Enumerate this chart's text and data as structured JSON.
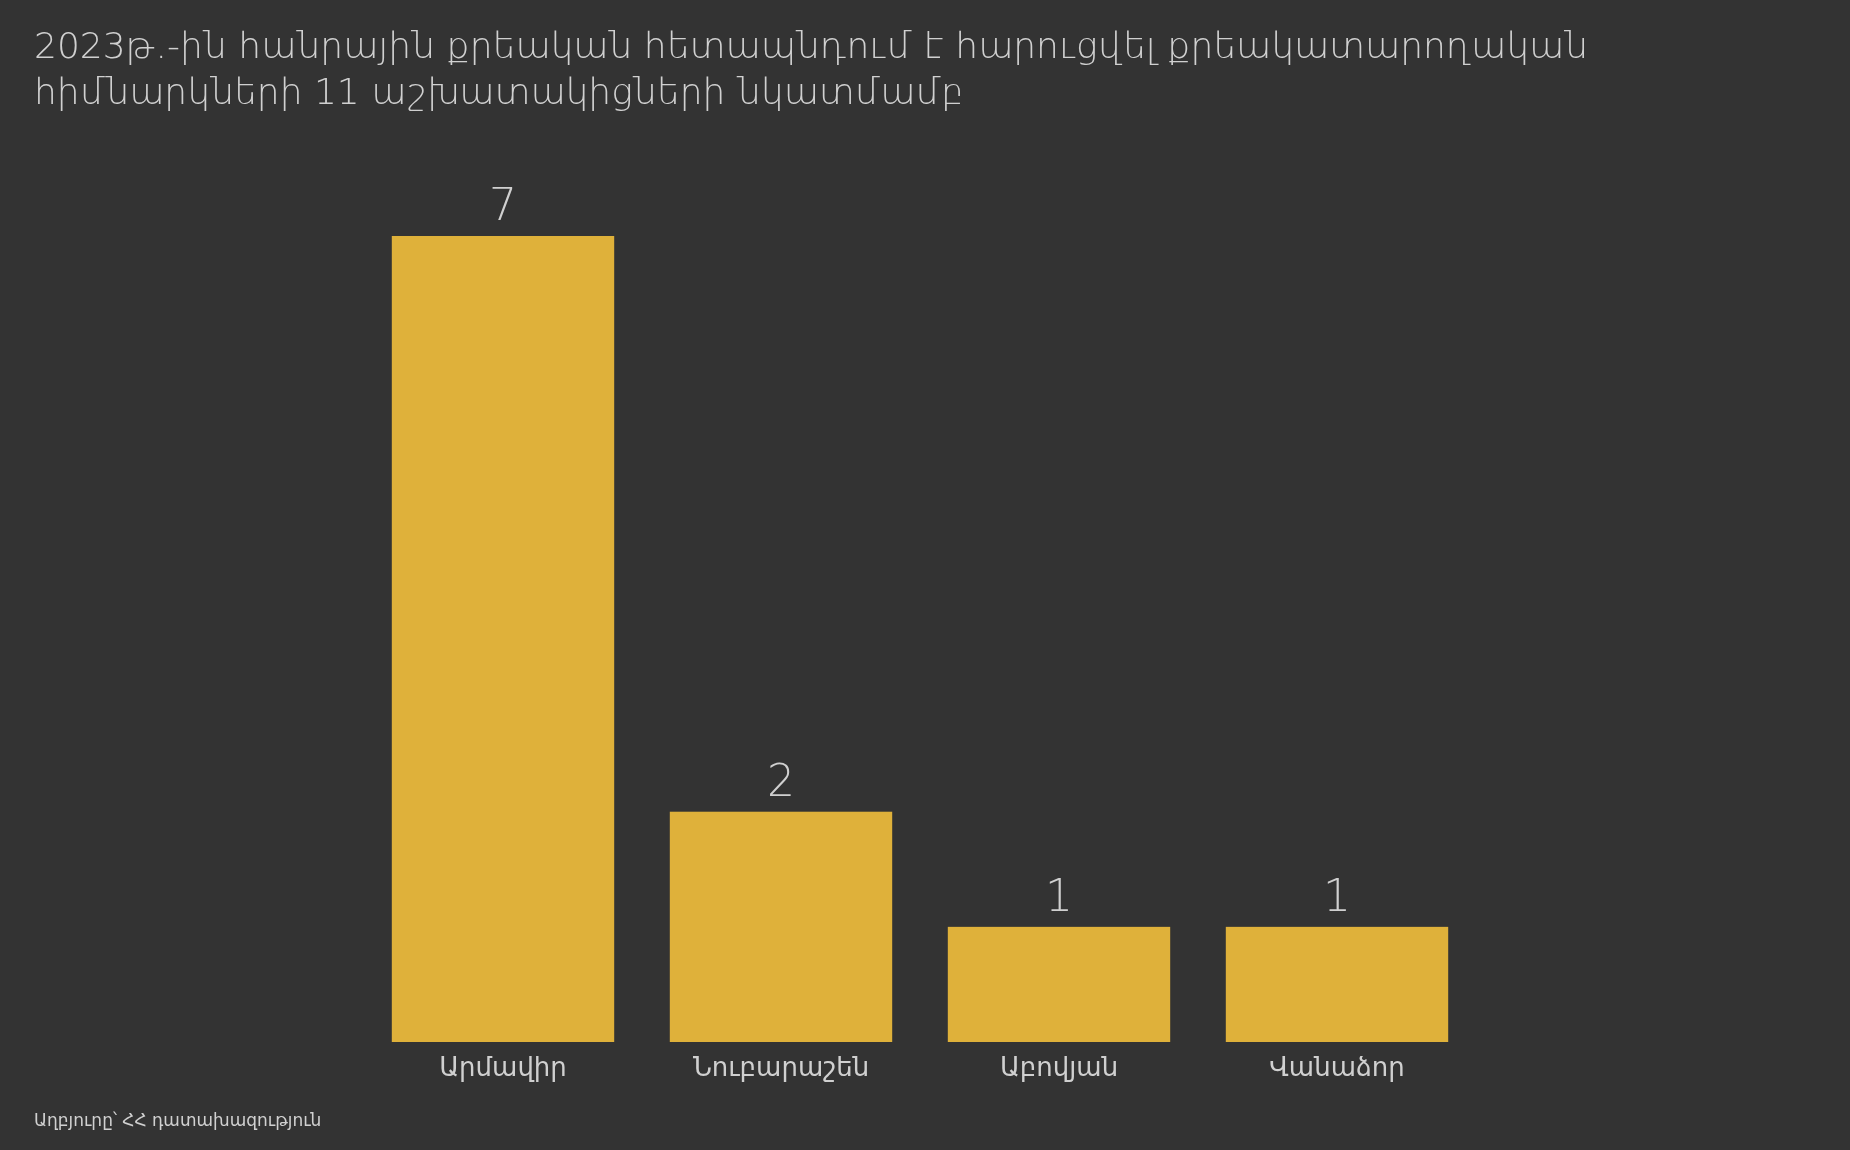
{
  "chart_data": {
    "type": "bar",
    "title": "2023թ.-ին հանրային քրեական հետապնդում է հարուցվել քրեակատարողական հիմնարկների 11 աշխատակիցների նկատմամբ",
    "categories": [
      "Արմավիր",
      "Նուբարաշեն",
      "Աբովյան",
      "Վանաձոր"
    ],
    "values": [
      7,
      2,
      1,
      1
    ],
    "color": "#dfb13a",
    "data_labels": true,
    "annotations": [
      "Աղբյուրը՝ ՀՀ դատախազություն"
    ]
  }
}
